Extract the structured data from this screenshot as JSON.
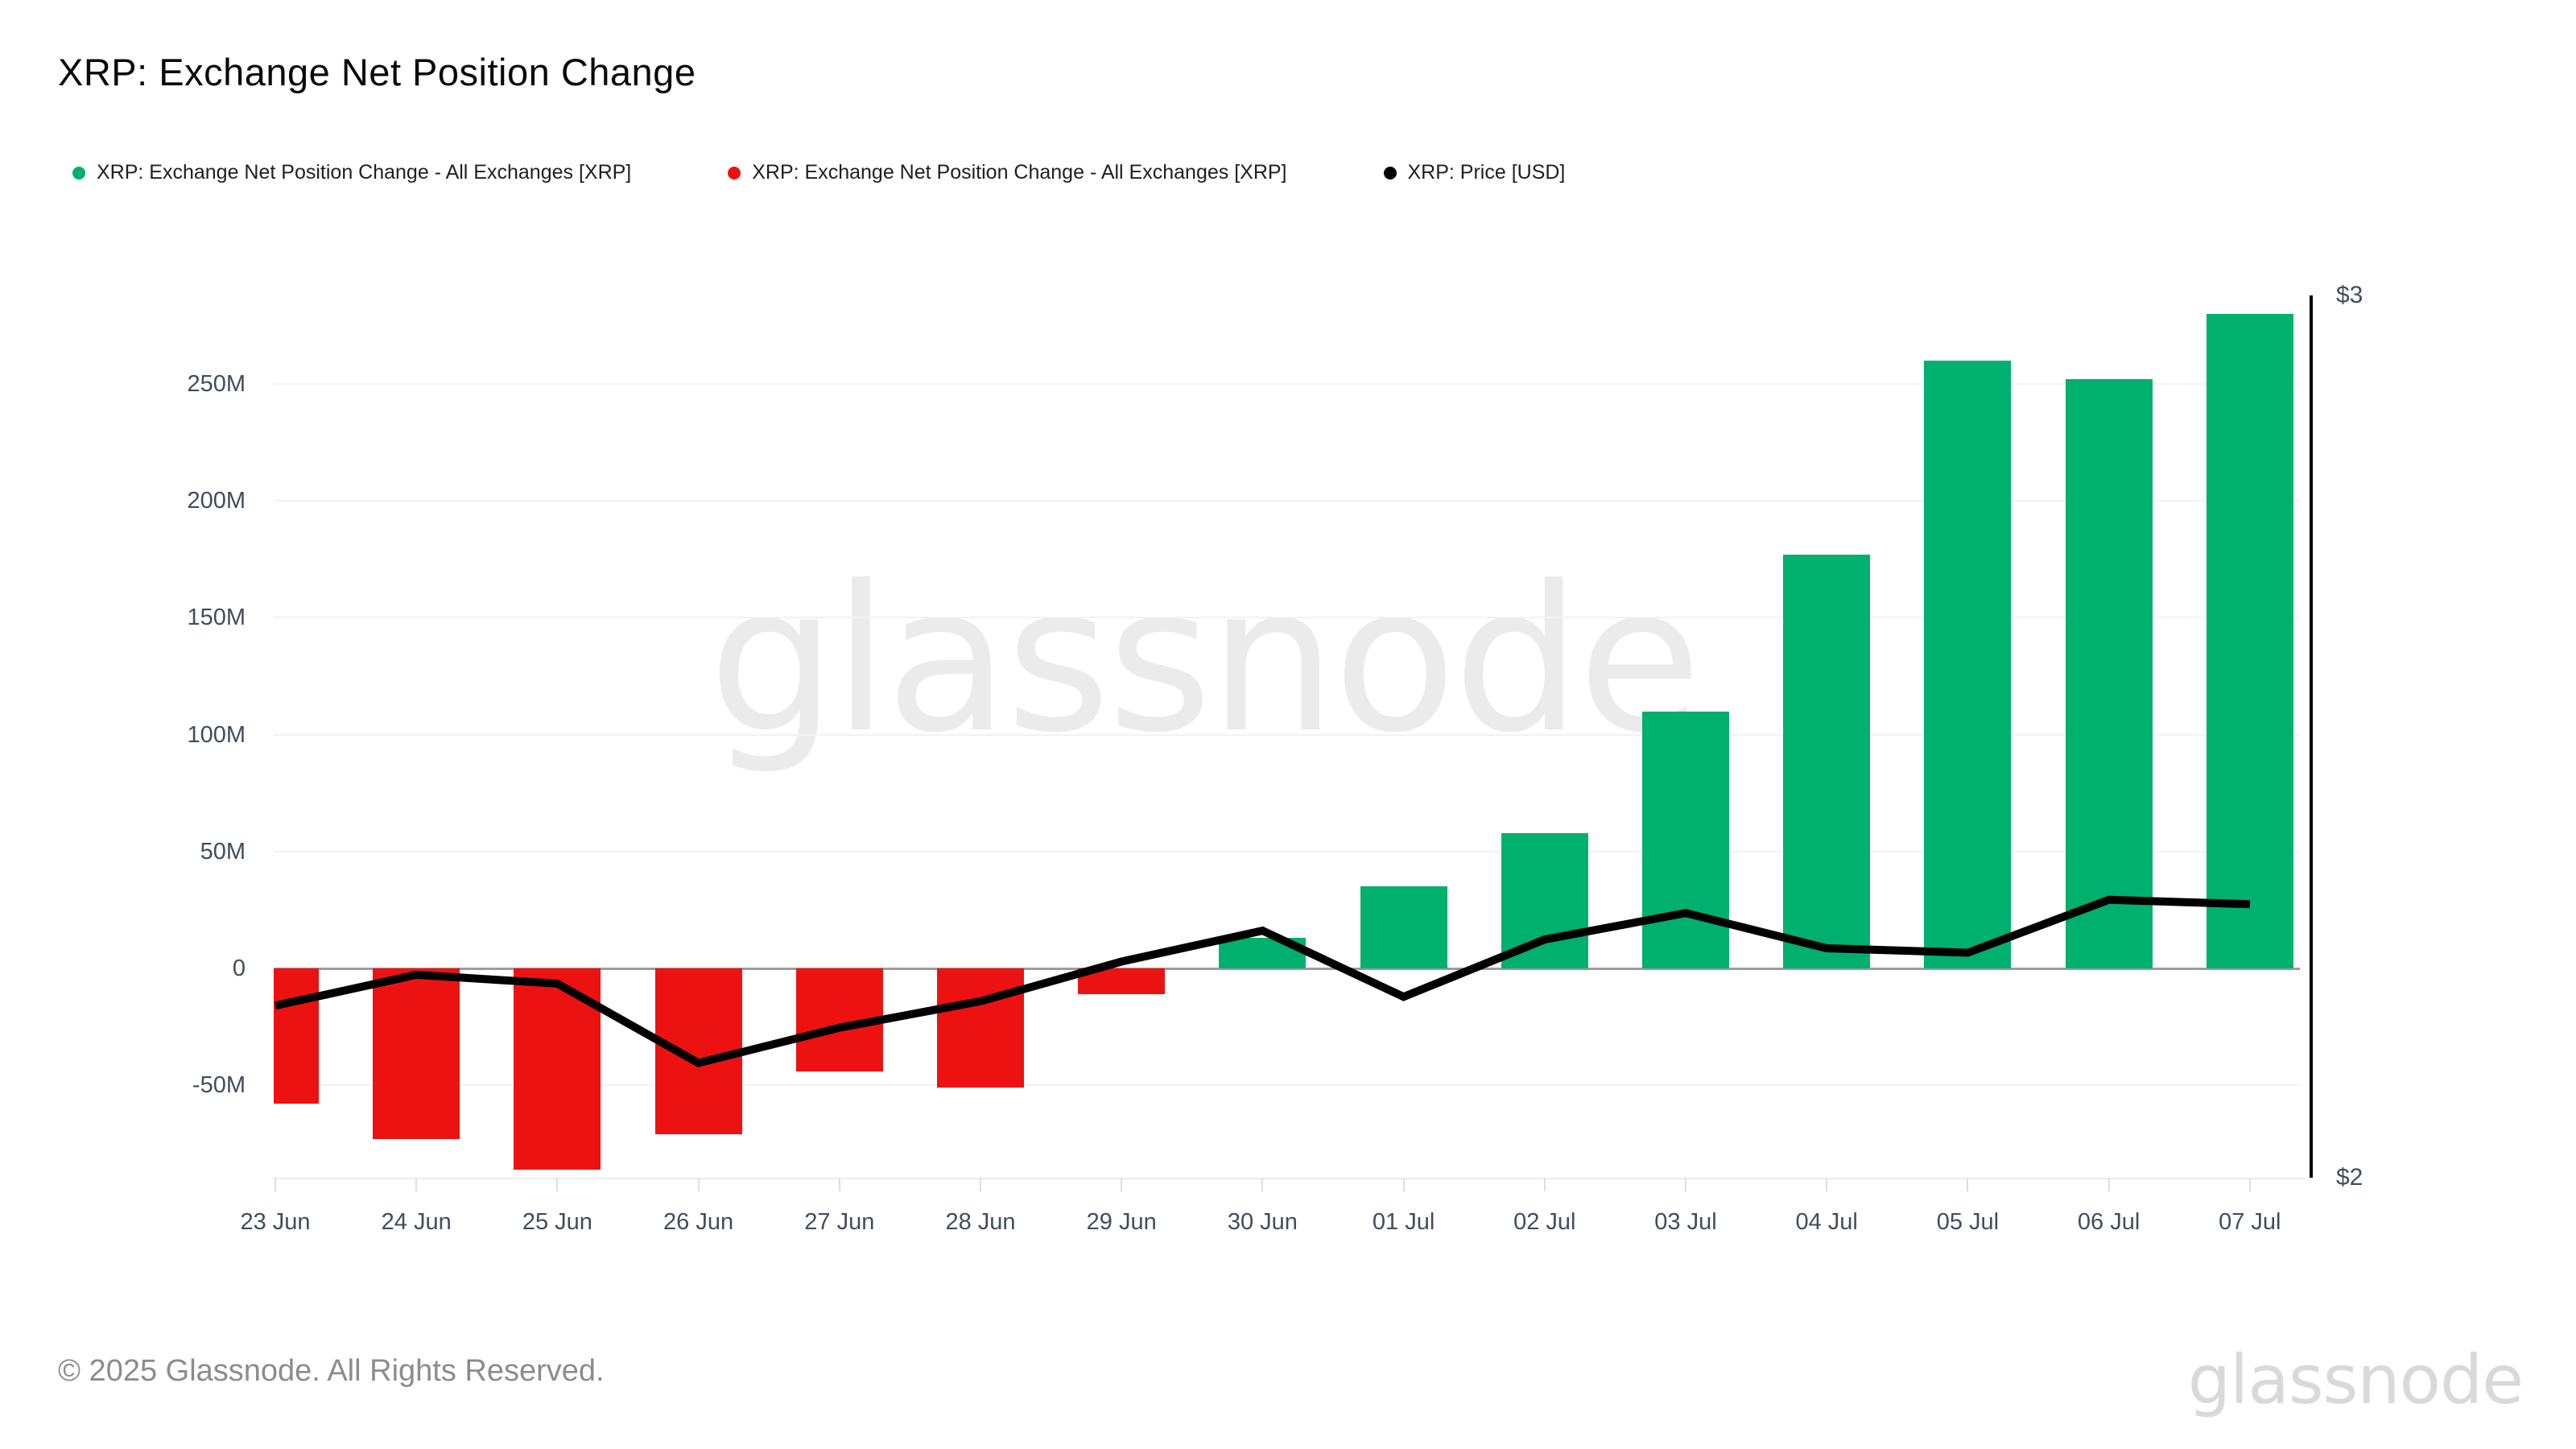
{
  "title": "XRP: Exchange Net Position Change",
  "legend": {
    "items": [
      {
        "label": "XRP: Exchange Net Position Change - All Exchanges [XRP]",
        "color": "#00b06e"
      },
      {
        "label": "XRP: Exchange Net Position Change - All Exchanges [XRP]",
        "color": "#ed1212"
      },
      {
        "label": "XRP: Price [USD]",
        "color": "#000000"
      }
    ]
  },
  "watermark": "glassnode",
  "footer": {
    "copyright": "© 2025 Glassnode. All Rights Reserved.",
    "logo": "glassnode"
  },
  "chart_data": {
    "type": "bar",
    "title": "XRP: Exchange Net Position Change",
    "categories": [
      "23 Jun",
      "24 Jun",
      "25 Jun",
      "26 Jun",
      "27 Jun",
      "28 Jun",
      "29 Jun",
      "30 Jun",
      "01 Jul",
      "02 Jul",
      "03 Jul",
      "04 Jul",
      "05 Jul",
      "06 Jul",
      "07 Jul"
    ],
    "series": [
      {
        "name": "XRP: Exchange Net Position Change - All Exchanges [XRP]",
        "type": "bar",
        "unit": "XRP (millions)",
        "values_m": [
          -58,
          -73,
          -86,
          -71,
          -44,
          -51,
          -11,
          13,
          35,
          58,
          110,
          177,
          260,
          252,
          280
        ],
        "positive_color": "#00b06e",
        "negative_color": "#ed1212"
      },
      {
        "name": "XRP: Price [USD]",
        "type": "line",
        "unit": "USD",
        "values": [
          2.195,
          2.23,
          2.22,
          2.13,
          2.17,
          2.2,
          2.245,
          2.28,
          2.205,
          2.27,
          2.3,
          2.26,
          2.255,
          2.315,
          2.31
        ],
        "color": "#000000"
      }
    ],
    "left_axis": {
      "ticks": [
        {
          "label": "250M",
          "value_m": 250
        },
        {
          "label": "200M",
          "value_m": 200
        },
        {
          "label": "150M",
          "value_m": 150
        },
        {
          "label": "100M",
          "value_m": 100
        },
        {
          "label": "50M",
          "value_m": 50
        },
        {
          "label": "0",
          "value_m": 0
        },
        {
          "label": "-50M",
          "value_m": -50
        }
      ],
      "range_m": [
        -89,
        287
      ]
    },
    "right_axis": {
      "ticks": [
        "$3",
        "$2"
      ],
      "range_usd": [
        2,
        3
      ]
    },
    "grid": "horizontal-light",
    "legend_position": "top-left"
  }
}
